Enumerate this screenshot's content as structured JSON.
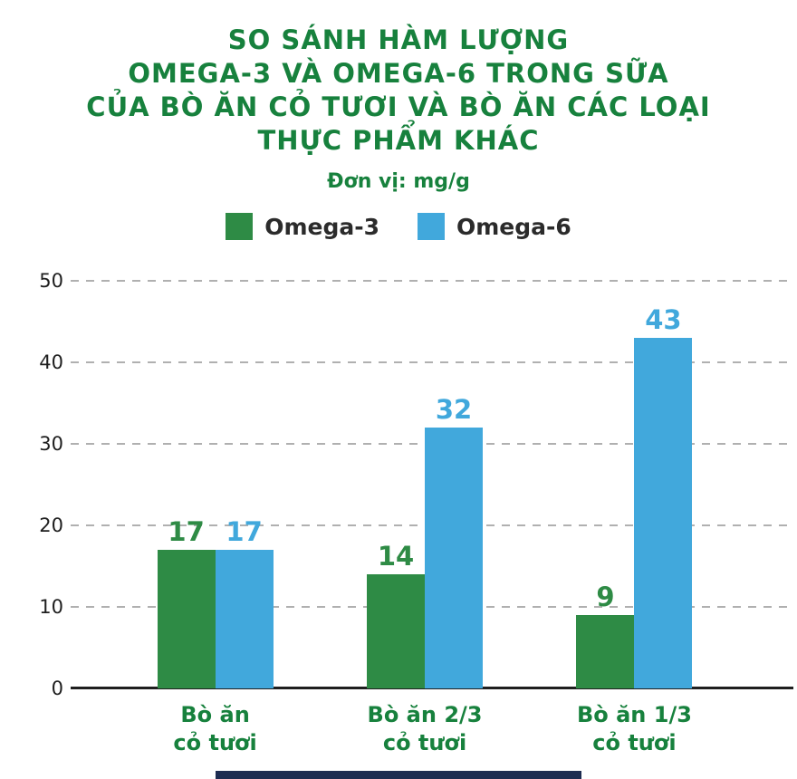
{
  "title": {
    "lines": [
      "SO SÁNH HÀM LƯỢNG",
      "OMEGA-3 VÀ OMEGA-6 TRONG SỮA",
      "CỦA BÒ ĂN CỎ TƯƠI VÀ BÒ ĂN CÁC LOẠI",
      "THỰC PHẨM KHÁC"
    ]
  },
  "subtitle": "Đơn vị: mg/g",
  "legend": [
    {
      "label": "Omega-3",
      "color": "#2e8b45"
    },
    {
      "label": "Omega-6",
      "color": "#41a8dc"
    }
  ],
  "colors": {
    "title_green": "#17813d",
    "bar_green": "#2e8b45",
    "bar_blue": "#41a8dc",
    "footer_navy": "#1d2c51",
    "gridline": "#b0b0b0",
    "baseline": "#1f1f1f"
  },
  "chart_data": {
    "type": "bar",
    "title": "SO SÁNH HÀM LƯỢNG OMEGA-3 VÀ OMEGA-6 TRONG SỮA CỦA BÒ ĂN CỎ TƯƠI VÀ BÒ ĂN CÁC LOẠI THỰC PHẨM KHÁC",
    "unit": "mg/g",
    "categories": [
      "Bò ăn\ncỏ tươi",
      "Bò ăn 2/3\ncỏ tươi",
      "Bò ăn 1/3\ncỏ tươi"
    ],
    "series": [
      {
        "name": "Omega-3",
        "color": "#2e8b45",
        "values": [
          17,
          14,
          9
        ]
      },
      {
        "name": "Omega-6",
        "color": "#41a8dc",
        "values": [
          17,
          32,
          43
        ]
      }
    ],
    "ylim": [
      0,
      50
    ],
    "yticks": [
      0,
      10,
      20,
      30,
      40,
      50
    ],
    "grid": "horizontal-dashed",
    "legend_position": "top",
    "group_centers_pct": [
      20,
      49,
      78
    ]
  }
}
